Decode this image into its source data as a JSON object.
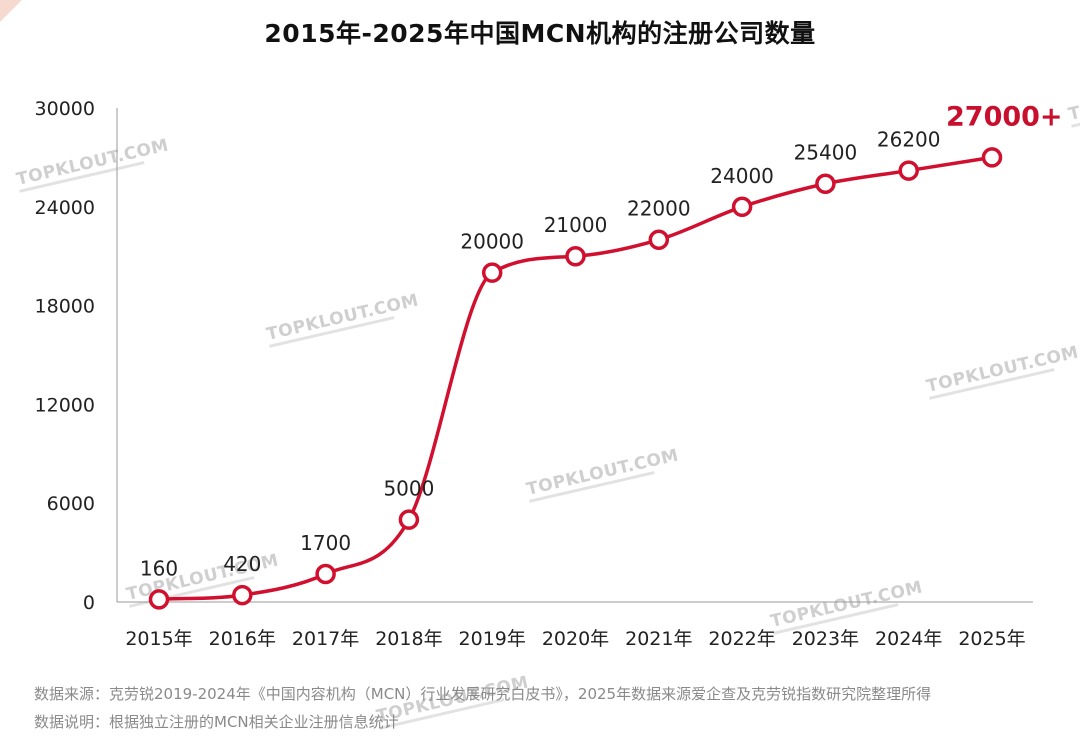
{
  "title": "2015年-2025年中国MCN机构的注册公司数量",
  "chart_data": {
    "type": "line",
    "categories": [
      "2015年",
      "2016年",
      "2017年",
      "2018年",
      "2019年",
      "2020年",
      "2021年",
      "2022年",
      "2023年",
      "2024年",
      "2025年"
    ],
    "values": [
      160,
      420,
      1700,
      5000,
      20000,
      21000,
      22000,
      24000,
      25400,
      26200,
      27000
    ],
    "data_labels": [
      "160",
      "420",
      "1700",
      "5000",
      "20000",
      "21000",
      "22000",
      "24000",
      "25400",
      "26200",
      "27000+"
    ],
    "yticks": [
      0,
      6000,
      12000,
      18000,
      24000,
      30000
    ],
    "ylim": [
      0,
      30000
    ],
    "line_color": "#d0102e",
    "highlight_color": "#c8102e",
    "grid": false
  },
  "watermark_text": "TOPKLOUT.COM",
  "footnotes": {
    "source": "数据来源：克劳锐2019-2024年《中国内容机构（MCN）行业发展研究白皮书》，2025年数据来源爱企查及克劳锐指数研究院整理所得",
    "description": "数据说明：根据独立注册的MCN相关企业注册信息统计"
  }
}
